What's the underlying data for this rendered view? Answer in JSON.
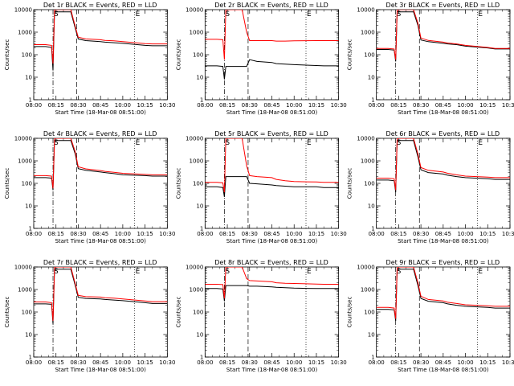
{
  "chart_data": {
    "type": "line",
    "y_scale": "log",
    "ylim": [
      1,
      10000
    ],
    "ytick_labels": [
      "1",
      "10",
      "100",
      "1000",
      "10000"
    ],
    "ylabel": "Counts/sec",
    "x_range": [
      "08:00",
      "10:30"
    ],
    "xtick_labels": [
      "08:00",
      "08:15",
      "08:30",
      "08:45",
      "10:00",
      "10:15",
      "10:30"
    ],
    "xlabel": "Start Time (18-Mar-08 08:51:00)",
    "series_colors": {
      "events": "#000000",
      "lld": "#ff0000"
    },
    "markers": [
      {
        "label": "S",
        "x": "08:13",
        "style": "dash-dot"
      },
      {
        "label": "",
        "x": "08:29",
        "style": "dashed"
      },
      {
        "label": "E",
        "x": "10:08",
        "style": "dotted"
      }
    ],
    "x": [
      "08:00",
      "08:08",
      "08:12",
      "08:13",
      "08:14",
      "08:18",
      "08:25",
      "08:28",
      "08:30",
      "08:35",
      "08:45",
      "09:00",
      "09:30",
      "10:00",
      "10:15",
      "10:20",
      "10:30"
    ],
    "panels": [
      {
        "title": "Det 1r BLACK = Events, RED = LLD",
        "events": [
          230,
          230,
          210,
          20,
          8000,
          8000,
          8000,
          1500,
          500,
          420,
          380,
          360,
          340,
          320,
          260,
          250,
          250
        ],
        "lld": [
          280,
          280,
          260,
          40,
          10000,
          10000,
          10000,
          1800,
          600,
          500,
          460,
          430,
          410,
          380,
          310,
          300,
          300
        ]
      },
      {
        "title": "Det 2r BLACK = Events, RED = LLD",
        "events": [
          32,
          32,
          30,
          8,
          30,
          30,
          30,
          30,
          60,
          50,
          45,
          40,
          38,
          36,
          33,
          32,
          32
        ],
        "lld": [
          480,
          480,
          460,
          60,
          10000,
          10000,
          10000,
          1000,
          420,
          420,
          420,
          400,
          400,
          410,
          420,
          420,
          420
        ]
      },
      {
        "title": "Det 3r BLACK = Events, RED = LLD",
        "events": [
          170,
          170,
          160,
          50,
          8000,
          8000,
          8000,
          2000,
          450,
          380,
          320,
          300,
          280,
          240,
          200,
          180,
          180
        ],
        "lld": [
          190,
          190,
          180,
          60,
          10000,
          10000,
          10000,
          2500,
          550,
          430,
          360,
          330,
          300,
          260,
          210,
          190,
          190
        ]
      },
      {
        "title": "Det 4r BLACK = Events, RED = LLD",
        "events": [
          180,
          180,
          170,
          50,
          8000,
          8000,
          8000,
          2000,
          450,
          380,
          320,
          300,
          270,
          240,
          220,
          210,
          210
        ],
        "lld": [
          220,
          220,
          210,
          60,
          10000,
          10000,
          10000,
          2500,
          550,
          440,
          370,
          340,
          310,
          280,
          250,
          240,
          240
        ]
      },
      {
        "title": "Det 5r BLACK = Events, RED = LLD",
        "events": [
          70,
          70,
          65,
          25,
          200,
          200,
          200,
          200,
          100,
          95,
          85,
          80,
          75,
          70,
          70,
          65,
          65
        ],
        "lld": [
          110,
          110,
          105,
          40,
          10000,
          10000,
          10000,
          600,
          220,
          200,
          180,
          150,
          130,
          120,
          115,
          110,
          110
        ]
      },
      {
        "title": "Det 6r BLACK = Events, RED = LLD",
        "events": [
          140,
          140,
          130,
          40,
          8000,
          8000,
          8000,
          1500,
          400,
          300,
          260,
          230,
          200,
          180,
          160,
          150,
          150
        ],
        "lld": [
          170,
          170,
          160,
          50,
          10000,
          10000,
          10000,
          2000,
          500,
          380,
          320,
          280,
          240,
          210,
          190,
          180,
          180
        ]
      },
      {
        "title": "Det 7r BLACK = Events, RED = LLD",
        "events": [
          230,
          230,
          220,
          30,
          8000,
          8000,
          8000,
          1500,
          450,
          400,
          380,
          360,
          340,
          320,
          260,
          240,
          240
        ],
        "lld": [
          280,
          280,
          260,
          40,
          10000,
          10000,
          10000,
          1800,
          550,
          480,
          460,
          430,
          410,
          380,
          310,
          290,
          290
        ]
      },
      {
        "title": "Det 8r BLACK = Events, RED = LLD",
        "events": [
          1100,
          1100,
          1050,
          300,
          1500,
          1500,
          1500,
          1500,
          1400,
          1400,
          1300,
          1250,
          1200,
          1150,
          1100,
          1100,
          1100
        ],
        "lld": [
          1700,
          1700,
          1650,
          400,
          10000,
          10000,
          10000,
          3000,
          2500,
          2400,
          2200,
          2000,
          1900,
          1850,
          1750,
          1700,
          1700
        ]
      },
      {
        "title": "Det 9r BLACK = Events, RED = LLD",
        "events": [
          130,
          130,
          125,
          40,
          8000,
          8000,
          8000,
          1500,
          400,
          300,
          260,
          230,
          200,
          180,
          160,
          150,
          150
        ],
        "lld": [
          160,
          160,
          150,
          50,
          10000,
          10000,
          10000,
          2000,
          500,
          360,
          310,
          270,
          240,
          210,
          190,
          180,
          180
        ]
      }
    ]
  }
}
